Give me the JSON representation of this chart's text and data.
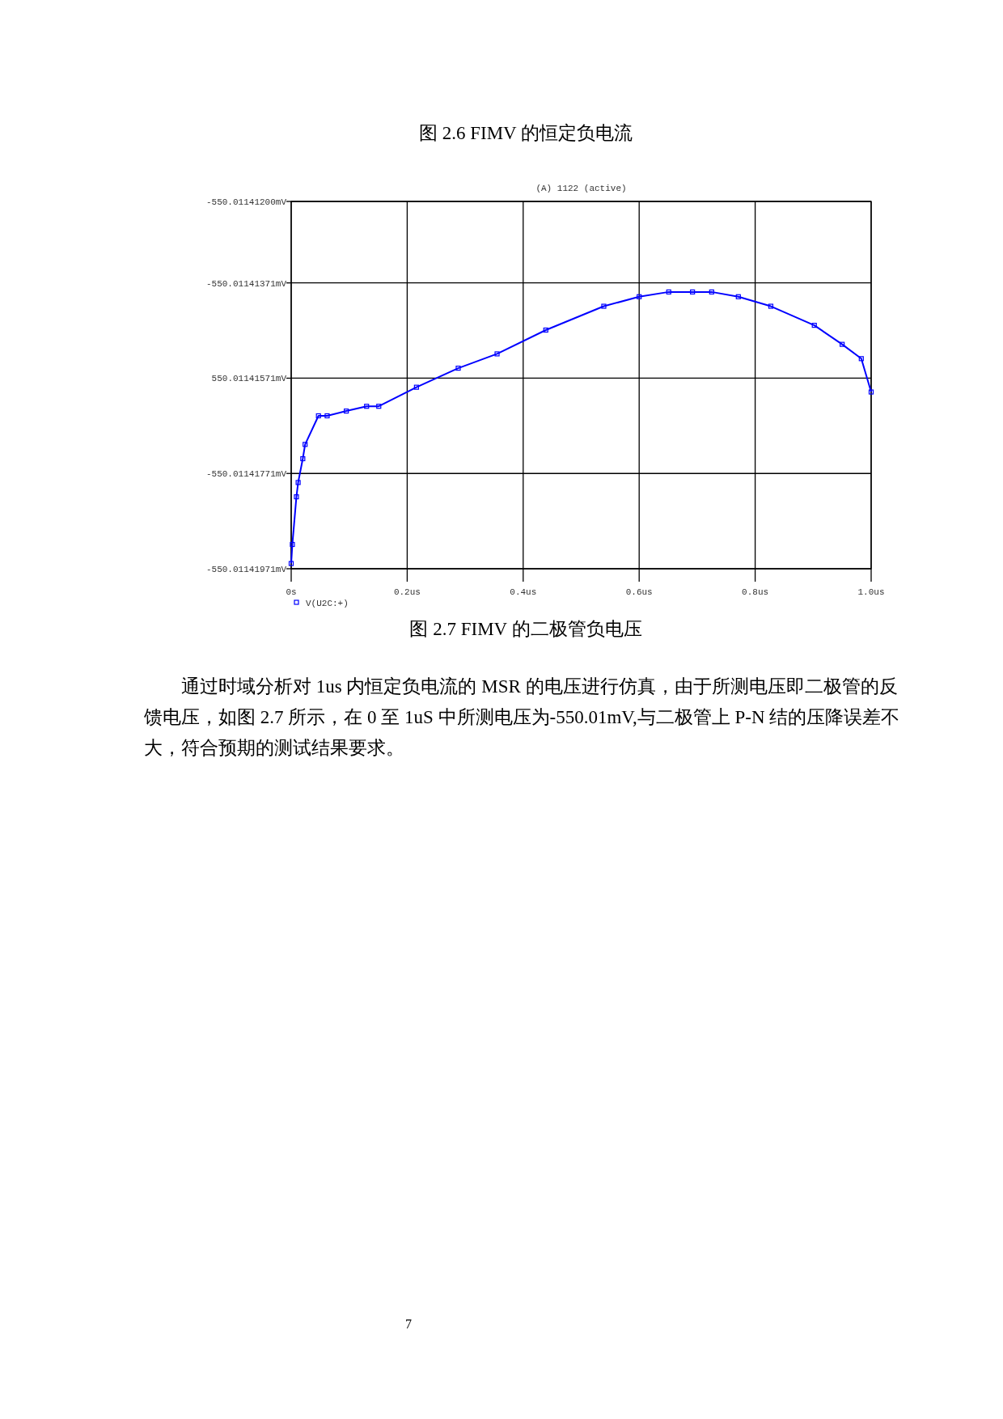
{
  "chart_data": {
    "type": "line",
    "title": "(A) 1122 (active)",
    "x": [
      0,
      0.002,
      0.009,
      0.012,
      0.02,
      0.024,
      0.047,
      0.062,
      0.095,
      0.13,
      0.151,
      0.216,
      0.288,
      0.355,
      0.439,
      0.539,
      0.6,
      0.651,
      0.692,
      0.725,
      0.771,
      0.827,
      0.902,
      0.95,
      0.983,
      1.0
    ],
    "series": [
      {
        "name": "V(U2C:+)",
        "color": "#0000ff",
        "values": [
          -550.0114196,
          -550.0114192,
          -550.0114182,
          -550.0114179,
          -550.0114174,
          -550.0114171,
          -550.0114165,
          -550.0114165,
          -550.0114164,
          -550.0114163,
          -550.0114163,
          -550.0114159,
          -550.0114155,
          -550.0114152,
          -550.0114147,
          -550.0114142,
          -550.011414,
          -550.0114139,
          -550.0114139,
          -550.0114139,
          -550.011414,
          -550.0114142,
          -550.0114146,
          -550.011415,
          -550.0114153,
          -550.011416
        ]
      }
    ],
    "xlim": [
      0,
      1.0
    ],
    "xticks": [
      {
        "value": 0,
        "label": "0s"
      },
      {
        "value": 0.2,
        "label": "0.2us"
      },
      {
        "value": 0.4,
        "label": "0.4us"
      },
      {
        "value": 0.6,
        "label": "0.6us"
      },
      {
        "value": 0.8,
        "label": "0.8us"
      },
      {
        "value": 1.0,
        "label": "1.0us"
      }
    ],
    "ylim": [
      -550.01141971,
      -550.011412
    ],
    "yticks": [
      {
        "value": -550.011412,
        "label": "-550.01141200mV"
      },
      {
        "value": -550.01141371,
        "label": "-550.01141371mV"
      },
      {
        "value": -550.01141571,
        "label": "550.01141571mV"
      },
      {
        "value": -550.01141771,
        "label": "-550.01141771mV"
      },
      {
        "value": -550.01141971,
        "label": "-550.01141971mV"
      }
    ],
    "grid": true,
    "legend": "bottom left",
    "marker": "square",
    "annotations": [
      "图 2.6 FIMV 的恒定负电流",
      "图 2.7 FIMV 的二极管负电压",
      "通过时域分析对 1us 内恒定负电流的 MSR 的电压进行仿真，由于所测电压即二极管的反馈电压，如图 2.7 所示，在 0 至 1uS 中所测电压为-550.01mV,与二极管上 P-N 结的压降误差不大，符合预期的测试结果要求。",
      "7"
    ]
  }
}
